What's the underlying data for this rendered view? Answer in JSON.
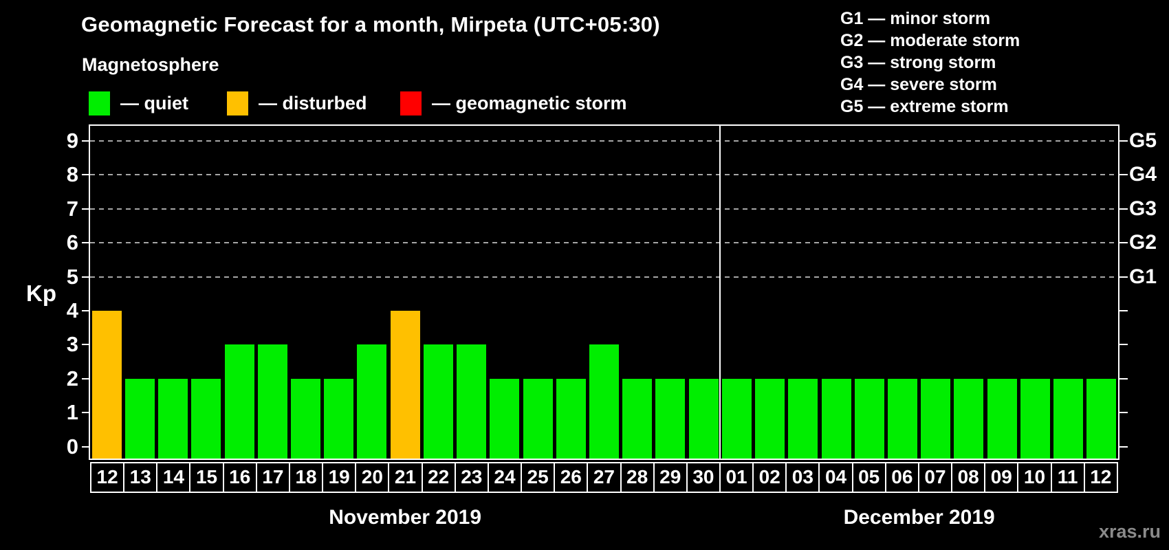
{
  "header": {
    "title": "Geomagnetic Forecast for a month, Mirpeta (UTC+05:30)",
    "subtitle": "Magnetosphere"
  },
  "legend": {
    "items": [
      {
        "name": "quiet",
        "label": "— quiet",
        "color": "#00ee00"
      },
      {
        "name": "disturbed",
        "label": "— disturbed",
        "color": "#ffc000"
      },
      {
        "name": "storm",
        "label": "— geomagnetic storm",
        "color": "#ff0000"
      }
    ]
  },
  "storm_scale_legend": [
    "G1 — minor storm",
    "G2 — moderate storm",
    "G3 — strong storm",
    "G4 — severe storm",
    "G5 — extreme storm"
  ],
  "watermark": "xras.ru",
  "chart_data": {
    "type": "bar",
    "title": "Geomagnetic Forecast for a month, Mirpeta (UTC+05:30)",
    "ylabel": "Kp",
    "ylim": [
      0,
      9
    ],
    "y_ticks": [
      0,
      1,
      2,
      3,
      4,
      5,
      6,
      7,
      8,
      9
    ],
    "gridlines_kp": [
      5,
      6,
      7,
      8,
      9
    ],
    "grid_style": "dashed horizontal lines at storm levels only",
    "legend_position": "top",
    "right_axis_labels": [
      {
        "kp": 5,
        "label": "G1"
      },
      {
        "kp": 6,
        "label": "G2"
      },
      {
        "kp": 7,
        "label": "G3"
      },
      {
        "kp": 8,
        "label": "G4"
      },
      {
        "kp": 9,
        "label": "G5"
      }
    ],
    "color_thresholds": {
      "quiet_max": 3,
      "disturbed_value": 4,
      "storm_min": 5
    },
    "month_groups": [
      {
        "label": "November 2019",
        "short": "nov",
        "start_index": 0,
        "count": 19
      },
      {
        "label": "December 2019",
        "short": "dec",
        "start_index": 19,
        "count": 12
      }
    ],
    "categories": [
      "12",
      "13",
      "14",
      "15",
      "16",
      "17",
      "18",
      "19",
      "20",
      "21",
      "22",
      "23",
      "24",
      "25",
      "26",
      "27",
      "28",
      "29",
      "30",
      "01",
      "02",
      "03",
      "04",
      "05",
      "06",
      "07",
      "08",
      "09",
      "10",
      "11",
      "12"
    ],
    "values": [
      4,
      2,
      2,
      2,
      3,
      3,
      2,
      2,
      3,
      4,
      3,
      3,
      2,
      2,
      2,
      3,
      2,
      2,
      2,
      2,
      2,
      2,
      2,
      2,
      2,
      2,
      2,
      2,
      2,
      2,
      2
    ]
  }
}
